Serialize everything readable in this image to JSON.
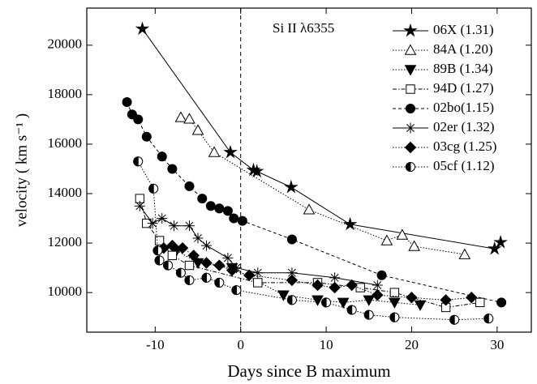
{
  "chart_data": {
    "type": "line",
    "annotation": "Si II λ6355",
    "x_label": "Days since B maximum",
    "y_label": "velocity ( km s⁻¹ )",
    "xlim": [
      -18,
      34
    ],
    "ylim": [
      8400,
      21500
    ],
    "xticks": [
      -10,
      0,
      10,
      20,
      30
    ],
    "yticks": [
      10000,
      12000,
      14000,
      16000,
      18000,
      20000
    ],
    "vline": 0,
    "series": [
      {
        "name": "06X (1.31)",
        "color": "#000",
        "marker": "star",
        "dash": "solid",
        "x": [
          -11.5,
          -1.2,
          1.5,
          1.9,
          5.9,
          12.8,
          29.7,
          30.4
        ],
        "values": [
          20660,
          15670,
          14950,
          14900,
          14260,
          12760,
          11770,
          12030
        ]
      },
      {
        "name": "84A (1.20)",
        "color": "#000",
        "marker": "triangle-up",
        "dash": "dotted",
        "x": [
          -7.0,
          -6.0,
          -5.0,
          -3.1,
          8.0,
          17.1,
          18.9,
          20.3,
          26.2
        ],
        "values": [
          17080,
          17020,
          16560,
          15670,
          13350,
          12100,
          12330,
          11870,
          11540
        ]
      },
      {
        "name": "89B (1.34)",
        "color": "#000",
        "marker": "triangle-down",
        "dash": "dotted",
        "x": [
          -7.5,
          -5,
          -1,
          5,
          9,
          12,
          15,
          18,
          21
        ],
        "values": [
          11700,
          11200,
          11000,
          9900,
          9700,
          9600,
          9700,
          9600,
          9500
        ]
      },
      {
        "name": "94D (1.27)",
        "color": "#000",
        "marker": "square",
        "dash": "dashdot",
        "x": [
          -11.8,
          -11,
          -9.5,
          -8,
          -6,
          2,
          9,
          14,
          18,
          24,
          28
        ],
        "values": [
          13800,
          12800,
          12100,
          11500,
          11100,
          10400,
          10400,
          10200,
          10000,
          9400,
          9600
        ]
      },
      {
        "name": "02bo(1.15)",
        "color": "#000",
        "marker": "circle",
        "dash": "dashed",
        "x": [
          -13.3,
          -12.7,
          -12,
          -11,
          -9.2,
          -8,
          -6,
          -4.5,
          -3.5,
          -2.5,
          -1.5,
          -0.8,
          0.2,
          6,
          16.5,
          30.5
        ],
        "values": [
          17700,
          17200,
          17000,
          16300,
          15500,
          15000,
          14300,
          13800,
          13500,
          13400,
          13300,
          13000,
          12900,
          12150,
          10700,
          9600
        ]
      },
      {
        "name": "02er (1.32)",
        "color": "#000",
        "marker": "asterisk",
        "dash": "solid",
        "x": [
          -11.8,
          -10.3,
          -9.2,
          -7.8,
          -6,
          -5,
          -4,
          -1.5,
          -0.5,
          2,
          6,
          11,
          16
        ],
        "values": [
          13500,
          12800,
          13000,
          12700,
          12700,
          12200,
          11900,
          11400,
          11000,
          10800,
          10800,
          10600,
          10300
        ]
      },
      {
        "name": "03cg (1.25)",
        "color": "#000",
        "marker": "diamond",
        "dash": "dotted",
        "x": [
          -9,
          -8,
          -6.8,
          -5.5,
          -4,
          -2.5,
          -1,
          1,
          6,
          9,
          11,
          13,
          16,
          20,
          24,
          27
        ],
        "values": [
          11800,
          11900,
          11800,
          11500,
          11200,
          11100,
          10900,
          10700,
          10500,
          10300,
          10200,
          10300,
          9900,
          9800,
          9700,
          9800
        ]
      },
      {
        "name": "05cf (1.12)",
        "color": "#000",
        "marker": "half-circle",
        "dash": "dotted",
        "x": [
          -12,
          -10.2,
          -9.7,
          -9.5,
          -8.5,
          -7,
          -6,
          -4,
          -2.5,
          -0.5,
          6,
          10,
          13,
          15,
          18,
          25,
          29
        ],
        "values": [
          15300,
          14200,
          11700,
          11300,
          11100,
          10800,
          10500,
          10600,
          10400,
          10100,
          9700,
          9600,
          9300,
          9100,
          9000,
          8900,
          8950
        ]
      }
    ]
  }
}
